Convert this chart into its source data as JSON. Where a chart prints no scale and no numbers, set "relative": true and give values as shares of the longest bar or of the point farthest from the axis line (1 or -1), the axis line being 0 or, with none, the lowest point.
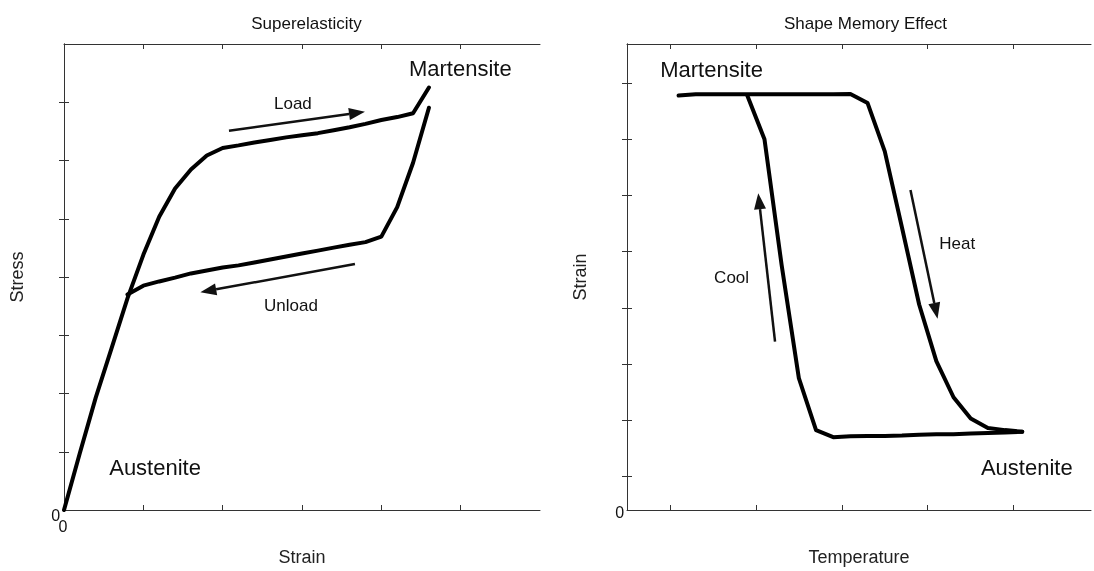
{
  "chart_data": [
    {
      "type": "line",
      "title": "Superelasticity",
      "xlabel": "Strain",
      "ylabel": "Stress",
      "relative": true,
      "categories": [
        null,
        null,
        null,
        null,
        null,
        null,
        null,
        null,
        null,
        null,
        null,
        null,
        null,
        null,
        null,
        null,
        null,
        null,
        null,
        null,
        null,
        null,
        null,
        null,
        null,
        null,
        null,
        null,
        null,
        null,
        null
      ],
      "series": [
        {
          "color": "#000000",
          "values": [
            0,
            0.135,
            0.266,
            0.383,
            0.501,
            0.604,
            0.694,
            0.761,
            0.806,
            0.839,
            0.857,
            0.863,
            0.87,
            0.876,
            0.882,
            0.887,
            0.892,
            0.899,
            0.906,
            0.914,
            0.923,
            0.93,
            0.939,
            1,
            null,
            null,
            null,
            null,
            null,
            null,
            null
          ]
        },
        {
          "color": "#000000",
          "values": [
            null,
            null,
            null,
            null,
            0.51,
            0.531,
            0.541,
            0.55,
            0.56,
            0.567,
            0.574,
            0.579,
            0.586,
            0.593,
            0.6,
            0.607,
            0.614,
            0.621,
            0.628,
            0.634,
            0.647,
            0.717,
            0.822,
            0.952,
            null,
            null,
            null,
            null,
            null,
            null,
            null
          ]
        }
      ],
      "annotations": [
        "Martensite",
        "Load",
        "Unload",
        "Austenite",
        "0",
        "0"
      ],
      "marker": "none",
      "line_style": "solid"
    },
    {
      "type": "line",
      "title": "Shape Memory Effect",
      "xlabel": "Temperature",
      "ylabel": "Strain",
      "relative": true,
      "categories": [
        null,
        null,
        null,
        null,
        null,
        null,
        null,
        null,
        null,
        null,
        null,
        null,
        null,
        null,
        null,
        null,
        null,
        null,
        null,
        null,
        null,
        null,
        null,
        null,
        null,
        null,
        null,
        null
      ],
      "series": [
        {
          "color": "#000000",
          "values": [
            null,
            null,
            null,
            0.996,
            0.999,
            0.999,
            0.999,
            0.999,
            0.999,
            0.999,
            0.999,
            0.999,
            0.999,
            1,
            0.978,
            0.862,
            0.679,
            0.494,
            0.358,
            0.271,
            0.22,
            0.197,
            0.192,
            0.188,
            null,
            null,
            null,
            null
          ]
        },
        {
          "color": "#000000",
          "values": [
            null,
            null,
            null,
            null,
            null,
            null,
            null,
            0.996,
            0.891,
            0.588,
            0.317,
            0.192,
            0.175,
            0.177,
            0.178,
            0.178,
            0.179,
            0.181,
            0.182,
            0.182,
            0.184,
            0.185,
            0.186,
            0.188,
            null,
            null,
            null,
            null
          ]
        }
      ],
      "annotations": [
        "Martensite",
        "Cool",
        "Heat",
        "Austenite",
        "0"
      ],
      "marker": "none",
      "line_style": "solid"
    }
  ]
}
